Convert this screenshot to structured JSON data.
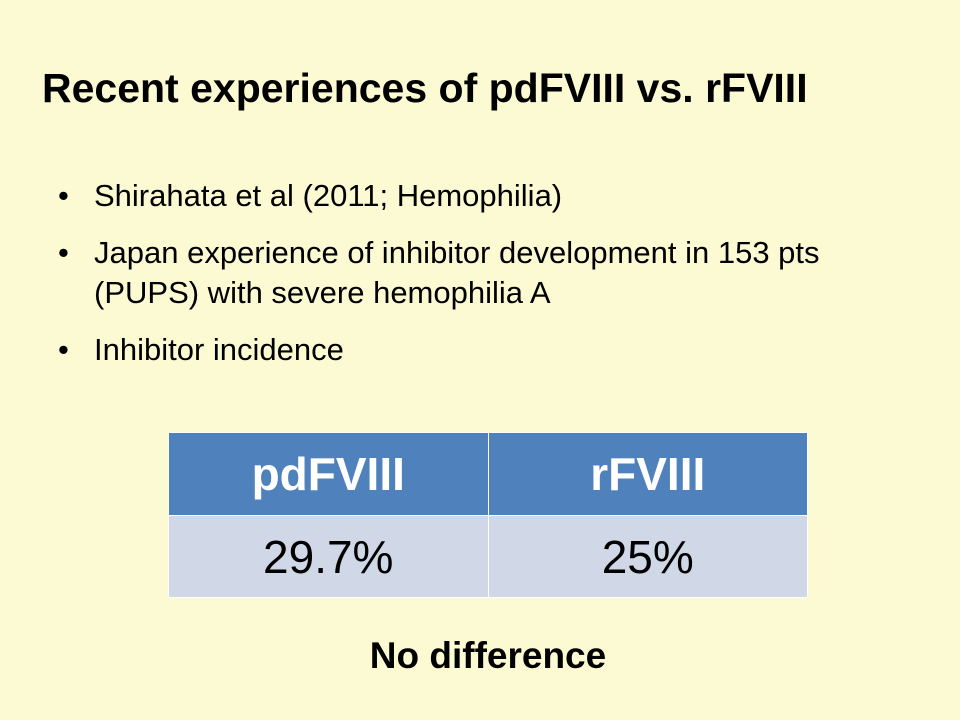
{
  "slide": {
    "title": "Recent experiences of pdFVIII vs. rFVIII",
    "bullets": [
      "Shirahata et al (2011; Hemophilia)",
      "Japan experience of inhibitor development in 153 pts (PUPS) with severe hemophilia A",
      "Inhibitor incidence"
    ],
    "table": {
      "headers": [
        "pdFVIII",
        "rFVIII"
      ],
      "rows": [
        [
          "29.7%",
          "25%"
        ]
      ]
    },
    "conclusion": "No difference"
  },
  "colors": {
    "background": "#fcfad2",
    "table_header": "#4f81bd",
    "table_row": "#d0d8e8"
  }
}
